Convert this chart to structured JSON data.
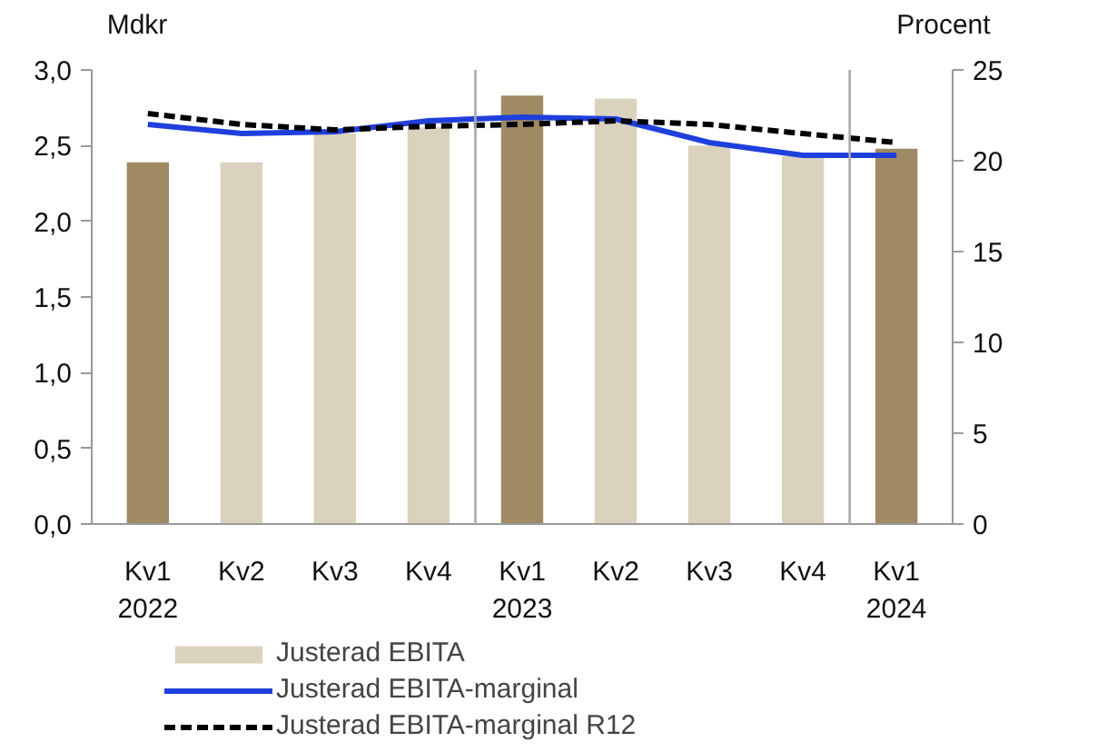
{
  "chart_data": {
    "type": "bar",
    "categories": [
      "Kv1\n2022",
      "Kv2",
      "Kv3",
      "Kv4",
      "Kv1\n2023",
      "Kv2",
      "Kv3",
      "Kv4",
      "Kv1\n2024"
    ],
    "ylabel": "Mdkr",
    "y2label": "Procent",
    "series": [
      {
        "name": "Justerad EBITA",
        "color": "#dbd2be",
        "colors": [
          "#a08a64",
          "#dbd2be",
          "#dbd2be",
          "#dbd2be",
          "#a08a64",
          "#dbd2be",
          "#dbd2be",
          "#dbd2be",
          "#a08a64"
        ],
        "values": [
          2.39,
          2.39,
          2.58,
          2.62,
          2.83,
          2.81,
          2.5,
          2.43,
          2.48
        ]
      },
      {
        "name": "Justerad EBITA-marginal",
        "type": "line",
        "axis": "y2",
        "color": "#1f3fdc",
        "line_style": "solid",
        "values": [
          22.0,
          21.5,
          21.6,
          22.2,
          22.4,
          22.3,
          21.0,
          20.3,
          20.3
        ]
      },
      {
        "name": "Justerad EBITA-marginal R12",
        "type": "line",
        "axis": "y2",
        "color": "#000000",
        "line_style": "dashed",
        "values": [
          22.6,
          22.0,
          21.7,
          21.9,
          22.0,
          22.2,
          22.0,
          21.5,
          21.0
        ]
      }
    ],
    "ylim": [
      0,
      3
    ],
    "yticks": [
      {
        "value": 0,
        "label": "0,0"
      },
      {
        "value": 0.5,
        "label": "0,5"
      },
      {
        "value": 1,
        "label": "1,0"
      },
      {
        "value": 1.5,
        "label": "1,5"
      },
      {
        "value": 2,
        "label": "2,0"
      },
      {
        "value": 2.5,
        "label": "2,5"
      },
      {
        "value": 3,
        "label": "3,0"
      }
    ],
    "y2lim": [
      0,
      25
    ],
    "y2ticks": [
      0,
      5,
      10,
      15,
      20,
      25
    ],
    "grid": false,
    "legend": "bottom"
  }
}
